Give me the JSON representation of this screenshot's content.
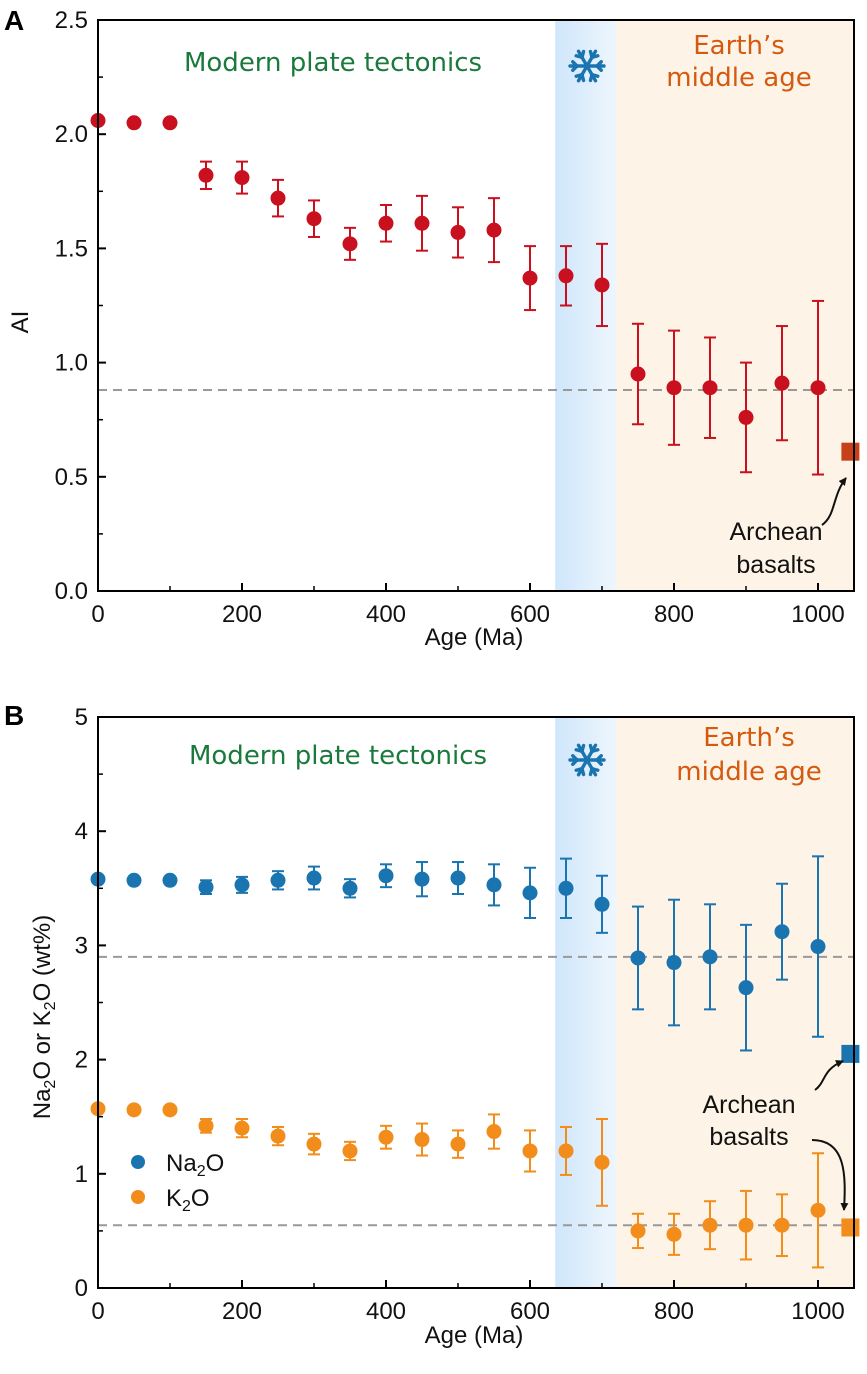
{
  "colors": {
    "red": "#c8101e",
    "blue": "#1a74b0",
    "orange": "#f28c1a",
    "archean_red": "#c8401a",
    "green_text": "#1a7a3c",
    "orange_text": "#d45a10",
    "snow_band": "#d6eafb",
    "middle_age_band": "#fdf3e6",
    "dashed": "#999999"
  },
  "icons": {
    "snowflake": "snowflake-icon"
  },
  "chart_data": [
    {
      "panel": "A",
      "type": "scatter",
      "xlabel": "Age (Ma)",
      "ylabel": "AI",
      "xlim": [
        0,
        1050
      ],
      "ylim": [
        0,
        2.5
      ],
      "xticks": [
        "0",
        "200",
        "400",
        "600",
        "800",
        "1000"
      ],
      "yticks": [
        "0.0",
        "0.5",
        "1.0",
        "1.5",
        "2.0",
        "2.5"
      ],
      "regions": {
        "modern": "Modern plate tectonics",
        "middle_line1": "Earth’s",
        "middle_line2": "middle age",
        "snowball_range": [
          635,
          720
        ],
        "middle_age_start": 720
      },
      "reference_line": 0.88,
      "annotation_line1": "Archean",
      "annotation_line2": "basalts",
      "series": [
        {
          "color": "red",
          "x": [
            0,
            50,
            100,
            150,
            200,
            250,
            300,
            350,
            400,
            450,
            500,
            550,
            600,
            650,
            700,
            750,
            800,
            850,
            900,
            950,
            1000
          ],
          "y": [
            2.06,
            2.05,
            2.05,
            1.82,
            1.81,
            1.72,
            1.63,
            1.52,
            1.61,
            1.61,
            1.57,
            1.58,
            1.37,
            1.38,
            1.34,
            0.95,
            0.89,
            0.89,
            0.76,
            0.91,
            0.89
          ],
          "err": [
            0,
            0,
            0,
            0.06,
            0.07,
            0.08,
            0.08,
            0.07,
            0.08,
            0.12,
            0.11,
            0.14,
            0.14,
            0.13,
            0.18,
            0.22,
            0.25,
            0.22,
            0.24,
            0.25,
            0.38
          ]
        }
      ],
      "archean": [
        {
          "x": 1045,
          "y": 0.61,
          "color": "archean_red"
        }
      ]
    },
    {
      "panel": "B",
      "type": "scatter",
      "xlabel": "Age (Ma)",
      "ylabel_pre": "Na",
      "ylabel_sub1": "2",
      "ylabel_mid": "O or K",
      "ylabel_sub2": "2",
      "ylabel_post": "O (wt%)",
      "xlim": [
        0,
        1050
      ],
      "ylim": [
        0,
        5
      ],
      "xticks": [
        "0",
        "200",
        "400",
        "600",
        "800",
        "1000"
      ],
      "yticks": [
        "0",
        "1",
        "2",
        "3",
        "4",
        "5"
      ],
      "regions": {
        "modern": "Modern plate tectonics",
        "middle_line1": "Earth’s",
        "middle_line2": "middle age",
        "snowball_range": [
          635,
          720
        ],
        "middle_age_start": 720
      },
      "reference_lines": [
        2.9,
        0.55
      ],
      "annotation_line1": "Archean",
      "annotation_line2": "basalts",
      "legend": [
        {
          "pre": "Na",
          "sub": "2",
          "post": "O",
          "color": "blue"
        },
        {
          "pre": "K",
          "sub": "2",
          "post": "O",
          "color": "orange"
        }
      ],
      "series": [
        {
          "color": "blue",
          "x": [
            0,
            50,
            100,
            150,
            200,
            250,
            300,
            350,
            400,
            450,
            500,
            550,
            600,
            650,
            700,
            750,
            800,
            850,
            900,
            950,
            1000
          ],
          "y": [
            3.58,
            3.57,
            3.57,
            3.51,
            3.53,
            3.57,
            3.59,
            3.5,
            3.61,
            3.58,
            3.59,
            3.53,
            3.46,
            3.5,
            3.36,
            2.89,
            2.85,
            2.9,
            2.63,
            3.12,
            2.99
          ],
          "err": [
            0,
            0,
            0,
            0.06,
            0.07,
            0.08,
            0.1,
            0.08,
            0.1,
            0.15,
            0.14,
            0.18,
            0.22,
            0.26,
            0.25,
            0.45,
            0.55,
            0.46,
            0.55,
            0.42,
            0.79
          ]
        },
        {
          "color": "orange",
          "x": [
            0,
            50,
            100,
            150,
            200,
            250,
            300,
            350,
            400,
            450,
            500,
            550,
            600,
            650,
            700,
            750,
            800,
            850,
            900,
            950,
            1000
          ],
          "y": [
            1.57,
            1.56,
            1.56,
            1.42,
            1.4,
            1.33,
            1.26,
            1.2,
            1.32,
            1.3,
            1.26,
            1.37,
            1.2,
            1.2,
            1.1,
            0.5,
            0.47,
            0.55,
            0.55,
            0.55,
            0.68
          ],
          "err": [
            0,
            0,
            0,
            0.06,
            0.08,
            0.08,
            0.09,
            0.08,
            0.1,
            0.14,
            0.12,
            0.15,
            0.18,
            0.21,
            0.38,
            0.15,
            0.18,
            0.21,
            0.3,
            0.27,
            0.5
          ]
        }
      ],
      "archean": [
        {
          "x": 1045,
          "y": 2.05,
          "color": "blue"
        },
        {
          "x": 1045,
          "y": 0.53,
          "color": "orange"
        }
      ]
    }
  ]
}
